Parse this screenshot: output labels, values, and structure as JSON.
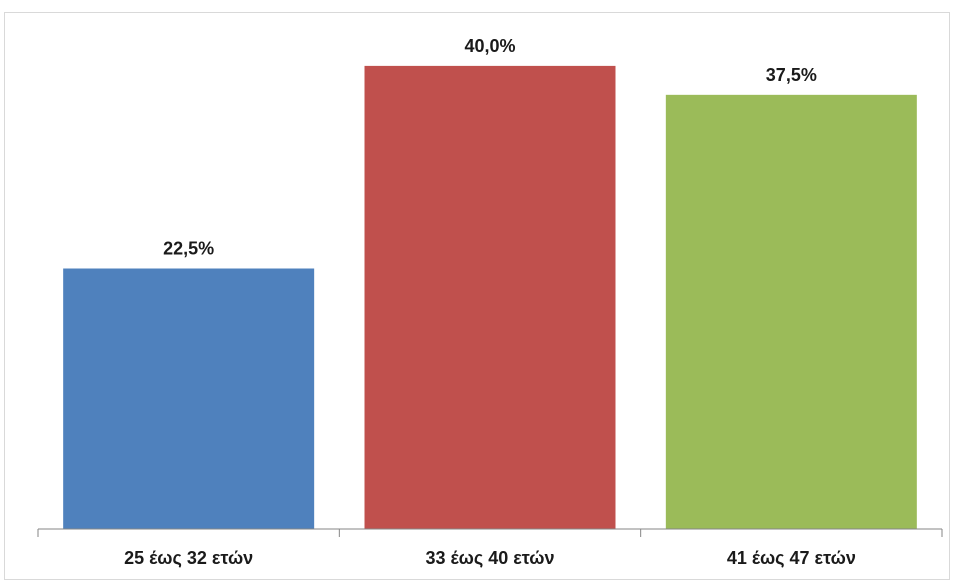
{
  "chart_data": {
    "type": "bar",
    "categories": [
      "25 έως 32 ετών",
      "33 έως 40 ετών",
      "41 έως 47 ετών"
    ],
    "values": [
      22.5,
      40.0,
      37.5
    ],
    "data_labels": [
      "22,5%",
      "40,0%",
      "37,5%"
    ],
    "colors": [
      "#4f81bd",
      "#c0504d",
      "#9bbb59"
    ],
    "axis_color": "#868686",
    "ylim": [
      0,
      45
    ],
    "grid": false,
    "legend": "none"
  }
}
